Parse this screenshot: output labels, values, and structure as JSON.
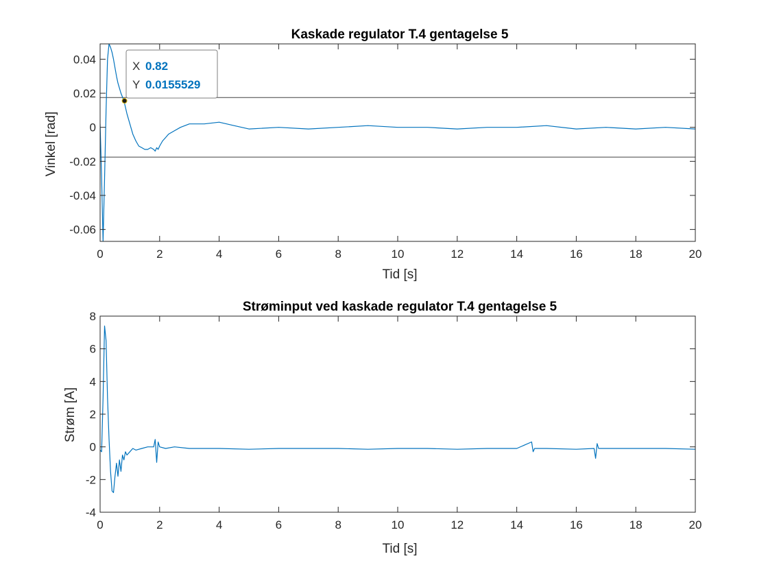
{
  "colors": {
    "line": "#0072BD",
    "axis": "#262626",
    "datatip_value": "#0072BD",
    "marker": "#1a1a1a",
    "ref_lines": "#404040"
  },
  "chart_data": [
    {
      "type": "line",
      "title": "Kaskade regulator T.4 gentagelse 5",
      "xlabel": "Tid [s]",
      "ylabel": "Vinkel [rad]",
      "xlim": [
        0,
        20
      ],
      "ylim": [
        -0.067,
        0.049
      ],
      "xticks": [
        0,
        2,
        4,
        6,
        8,
        10,
        12,
        14,
        16,
        18,
        20
      ],
      "xtick_labels": [
        "0",
        "2",
        "4",
        "6",
        "8",
        "10",
        "12",
        "14",
        "16",
        "18",
        "20"
      ],
      "yticks": [
        -0.06,
        -0.04,
        -0.02,
        0,
        0.02,
        0.04
      ],
      "ytick_labels": [
        "-0.06",
        "-0.04",
        "-0.02",
        "0",
        "0.02",
        "0.04"
      ],
      "grid": false,
      "reference_lines": [
        0.0175,
        -0.0175
      ],
      "series": [
        {
          "x": [
            0,
            0.05,
            0.1,
            0.15,
            0.2,
            0.25,
            0.3,
            0.35,
            0.4,
            0.45,
            0.5,
            0.55,
            0.6,
            0.65,
            0.7,
            0.8,
            0.9,
            1.0,
            1.1,
            1.2,
            1.3,
            1.4,
            1.5,
            1.6,
            1.7,
            1.8,
            1.85,
            1.9,
            1.95,
            2.0,
            2.1,
            2.2,
            2.3,
            2.5,
            2.7,
            3.0,
            3.5,
            4.0,
            4.5,
            5,
            6,
            7,
            8,
            9,
            10,
            11,
            12,
            13,
            14,
            15,
            16,
            17,
            18,
            19,
            20
          ],
          "y": [
            0.002,
            -0.03,
            -0.067,
            -0.03,
            0.01,
            0.04,
            0.049,
            0.047,
            0.044,
            0.04,
            0.035,
            0.03,
            0.026,
            0.023,
            0.02,
            0.0156,
            0.008,
            0.002,
            -0.004,
            -0.008,
            -0.011,
            -0.012,
            -0.013,
            -0.013,
            -0.012,
            -0.013,
            -0.014,
            -0.012,
            -0.013,
            -0.011,
            -0.008,
            -0.006,
            -0.004,
            -0.002,
            0.0,
            0.002,
            0.002,
            0.003,
            0.001,
            -0.001,
            0.0,
            -0.001,
            0.0,
            0.001,
            0.0,
            0.0,
            -0.001,
            0.0,
            0.0,
            0.001,
            -0.001,
            0.0,
            -0.001,
            0.0,
            -0.001
          ]
        }
      ],
      "datatip": {
        "x_label": "X",
        "x_value": "0.82",
        "y_label": "Y",
        "y_value": "0.0155529",
        "x": 0.82,
        "y": 0.0155529
      }
    },
    {
      "type": "line",
      "title": "Strøminput ved kaskade regulator T.4 gentagelse 5",
      "xlabel": "Tid [s]",
      "ylabel": "Strøm [A]",
      "xlim": [
        0,
        20
      ],
      "ylim": [
        -4,
        8
      ],
      "xticks": [
        0,
        2,
        4,
        6,
        8,
        10,
        12,
        14,
        16,
        18,
        20
      ],
      "xtick_labels": [
        "0",
        "2",
        "4",
        "6",
        "8",
        "10",
        "12",
        "14",
        "16",
        "18",
        "20"
      ],
      "yticks": [
        -4,
        -2,
        0,
        2,
        4,
        6,
        8
      ],
      "ytick_labels": [
        "-4",
        "-2",
        "0",
        "2",
        "4",
        "6",
        "8"
      ],
      "grid": false,
      "series": [
        {
          "x": [
            0,
            0.05,
            0.1,
            0.15,
            0.2,
            0.25,
            0.3,
            0.35,
            0.4,
            0.45,
            0.5,
            0.55,
            0.6,
            0.65,
            0.7,
            0.75,
            0.8,
            0.85,
            0.9,
            1.0,
            1.1,
            1.2,
            1.4,
            1.6,
            1.8,
            1.85,
            1.9,
            1.95,
            2.0,
            2.2,
            2.5,
            3,
            4,
            5,
            6,
            7,
            8,
            9,
            10,
            11,
            12,
            13,
            14,
            14.5,
            14.55,
            14.6,
            15,
            16,
            16.6,
            16.65,
            16.7,
            16.75,
            17,
            18,
            19,
            20
          ],
          "y": [
            -0.2,
            -0.3,
            3.0,
            7.4,
            6.5,
            3.0,
            0.5,
            -1.5,
            -2.7,
            -2.8,
            -1.8,
            -1.0,
            -1.8,
            -0.8,
            -1.5,
            -0.5,
            -0.8,
            -0.3,
            -0.5,
            -0.3,
            -0.1,
            -0.2,
            -0.1,
            0.0,
            0.0,
            0.45,
            -0.95,
            0.3,
            0.0,
            -0.1,
            0.0,
            -0.1,
            -0.1,
            -0.15,
            -0.1,
            -0.1,
            -0.1,
            -0.15,
            -0.1,
            -0.1,
            -0.15,
            -0.1,
            -0.1,
            0.3,
            -0.3,
            -0.1,
            -0.1,
            -0.15,
            -0.1,
            -0.7,
            0.2,
            -0.1,
            -0.1,
            -0.1,
            -0.1,
            -0.15
          ]
        }
      ]
    }
  ]
}
